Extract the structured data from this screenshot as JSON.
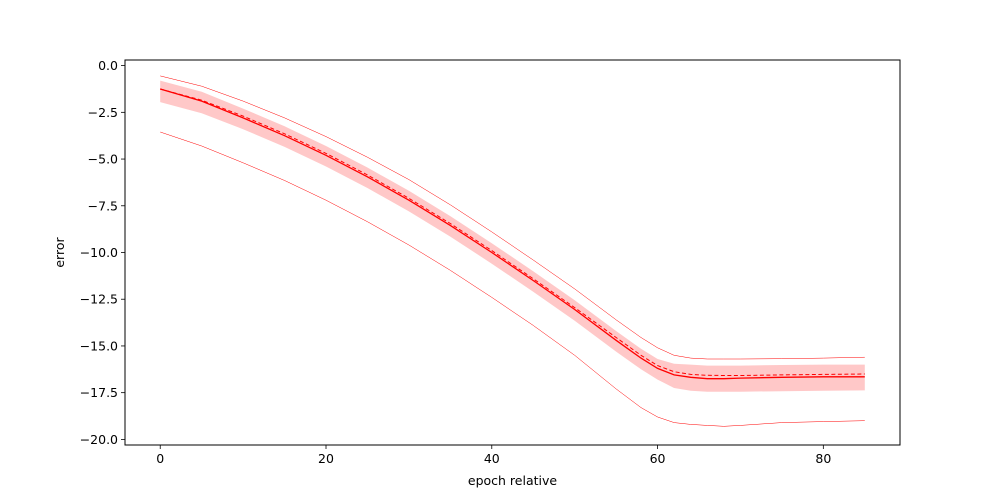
{
  "chart_data": {
    "type": "line",
    "title": "",
    "xlabel": "epoch relative",
    "ylabel": "error",
    "xlim": [
      -4.25,
      89.25
    ],
    "ylim": [
      -20.3,
      0.3
    ],
    "xticks": [
      0,
      20,
      40,
      60,
      80
    ],
    "xtick_labels": [
      "0",
      "20",
      "40",
      "60",
      "80"
    ],
    "yticks": [
      0,
      -2.5,
      -5,
      -7.5,
      -10,
      -12.5,
      -15,
      -17.5,
      -20
    ],
    "ytick_labels": [
      "0.0",
      "−2.5",
      "−5.0",
      "−7.5",
      "−10.0",
      "−12.5",
      "−15.0",
      "−17.5",
      "−20.0"
    ],
    "grid": false,
    "legend": "none",
    "color": "#ff0000",
    "band_color": "#ffc8c8",
    "x": [
      0,
      5,
      10,
      15,
      20,
      25,
      30,
      35,
      40,
      45,
      50,
      55,
      58,
      60,
      62,
      64,
      66,
      68,
      70,
      75,
      80,
      85
    ],
    "series": [
      {
        "role": "mean",
        "style": "solid",
        "values": [
          -1.25,
          -1.9,
          -2.8,
          -3.75,
          -4.8,
          -5.95,
          -7.2,
          -8.55,
          -10.0,
          -11.5,
          -13.05,
          -14.7,
          -15.65,
          -16.2,
          -16.55,
          -16.68,
          -16.75,
          -16.75,
          -16.72,
          -16.68,
          -16.65,
          -16.65
        ]
      },
      {
        "role": "median",
        "style": "dashed",
        "values": [
          -1.25,
          -1.85,
          -2.7,
          -3.65,
          -4.7,
          -5.85,
          -7.1,
          -8.45,
          -9.9,
          -11.4,
          -12.95,
          -14.55,
          -15.5,
          -16.05,
          -16.38,
          -16.52,
          -16.57,
          -16.58,
          -16.58,
          -16.55,
          -16.52,
          -16.5
        ]
      },
      {
        "role": "band-upper",
        "style": "fill",
        "values": [
          -0.8,
          -1.4,
          -2.3,
          -3.25,
          -4.3,
          -5.45,
          -6.7,
          -8.05,
          -9.5,
          -11.0,
          -12.55,
          -14.2,
          -15.15,
          -15.7,
          -15.95,
          -16.0,
          -16.05,
          -16.05,
          -16.05,
          -16.02,
          -16.0,
          -16.0
        ]
      },
      {
        "role": "band-lower",
        "style": "fill",
        "values": [
          -1.95,
          -2.55,
          -3.4,
          -4.35,
          -5.4,
          -6.55,
          -7.8,
          -9.15,
          -10.6,
          -12.1,
          -13.65,
          -15.3,
          -16.25,
          -16.8,
          -17.25,
          -17.4,
          -17.45,
          -17.45,
          -17.45,
          -17.42,
          -17.4,
          -17.38
        ]
      },
      {
        "role": "max",
        "style": "thin",
        "values": [
          -0.55,
          -1.1,
          -1.9,
          -2.8,
          -3.8,
          -4.9,
          -6.1,
          -7.45,
          -8.9,
          -10.4,
          -11.95,
          -13.6,
          -14.55,
          -15.1,
          -15.5,
          -15.65,
          -15.7,
          -15.7,
          -15.7,
          -15.68,
          -15.65,
          -15.6
        ]
      },
      {
        "role": "min",
        "style": "thin",
        "values": [
          -3.55,
          -4.3,
          -5.2,
          -6.15,
          -7.2,
          -8.35,
          -9.6,
          -10.95,
          -12.4,
          -13.9,
          -15.5,
          -17.3,
          -18.3,
          -18.8,
          -19.1,
          -19.2,
          -19.25,
          -19.3,
          -19.25,
          -19.1,
          -19.05,
          -19.0
        ]
      }
    ]
  }
}
